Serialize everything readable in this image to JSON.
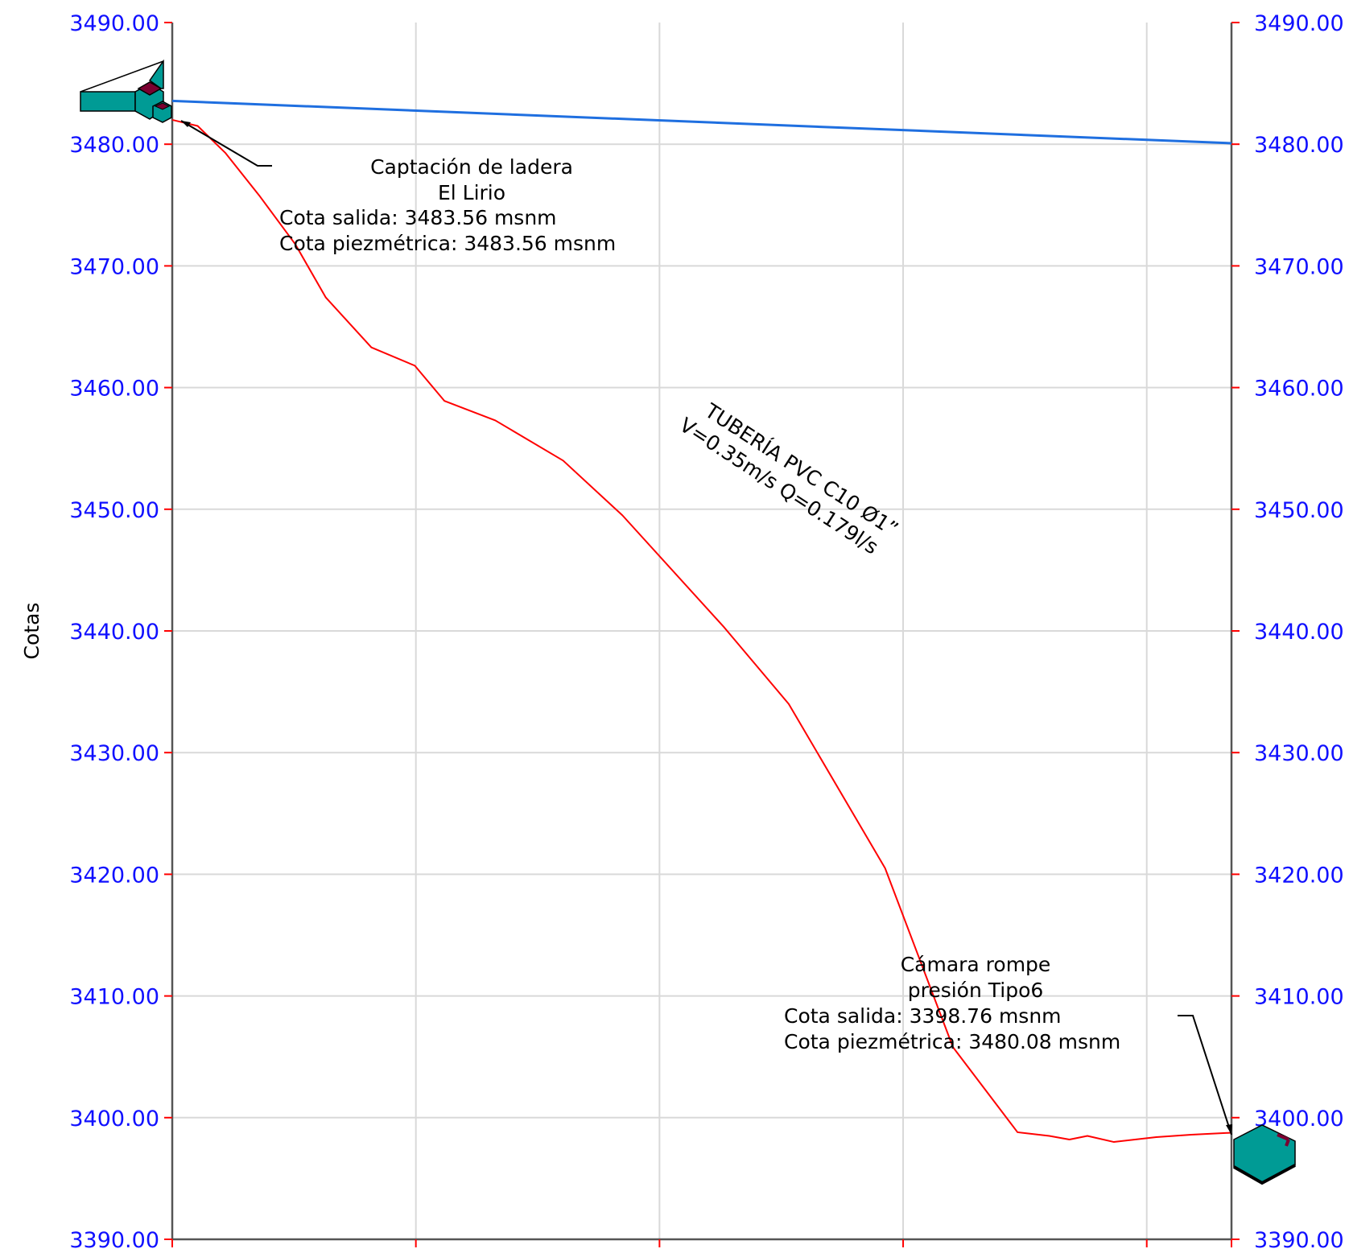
{
  "chart_data": {
    "type": "line",
    "title": "",
    "ylabel": "Cotas",
    "xlabel": "",
    "ylim": [
      3390,
      3490
    ],
    "xlim": [
      0,
      100
    ],
    "y_ticks": [
      "3390.00",
      "3400.00",
      "3410.00",
      "3420.00",
      "3430.00",
      "3440.00",
      "3450.00",
      "3460.00",
      "3470.00",
      "3480.00",
      "3490.00"
    ],
    "x_grid": [
      0,
      23,
      46,
      69,
      92,
      100
    ],
    "grid": true,
    "series": [
      {
        "role": "terrain",
        "color": "#ff0000",
        "x": [
          0,
          2.4,
          5,
          8.2,
          11.6,
          14.5,
          18.8,
          22.9,
          25.7,
          30.5,
          36.9,
          42.5,
          52.1,
          58.2,
          67.3,
          73.7,
          79.8,
          82.8,
          84.7,
          86.4,
          88.9,
          92.9,
          96.2,
          100
        ],
        "y": [
          3482,
          3481.5,
          3479.3,
          3475.8,
          3471.8,
          3467.4,
          3463.3,
          3461.8,
          3458.9,
          3457.3,
          3454.0,
          3449.5,
          3440.3,
          3434.0,
          3420.5,
          3405.8,
          3398.8,
          3398.5,
          3398.2,
          3398.5,
          3398.0,
          3398.4,
          3398.6,
          3398.76
        ],
        "show_to": 100
      },
      {
        "role": "piezometric",
        "color": "#1f6fe0",
        "x": [
          0,
          100
        ],
        "y": [
          3483.56,
          3480.08
        ]
      }
    ],
    "annotations": [
      {
        "id": "start",
        "lines": [
          "Captación de ladera",
          "El Lirio",
          "Cota salida: 3483.56 msnm",
          "Cota piezmétrica: 3483.56 msnm"
        ]
      },
      {
        "id": "pipe",
        "lines": [
          "TUBERÍA PVC C10 Ø1”",
          "V=0.35m/s Q=0.179l/s"
        ]
      },
      {
        "id": "end",
        "lines": [
          "Cámara rompe",
          "presión Tipo6",
          "Cota salida: 3398.76 msnm",
          "Cota piezmétrica: 3480.08 msnm"
        ]
      }
    ]
  },
  "colors": {
    "axis": "#555555",
    "grid": "#d9d9d9",
    "tick_mark": "#ff0000",
    "tick_label": "#1010ff",
    "structure_fill": "#009b95",
    "structure_dark": "#7a0030"
  }
}
